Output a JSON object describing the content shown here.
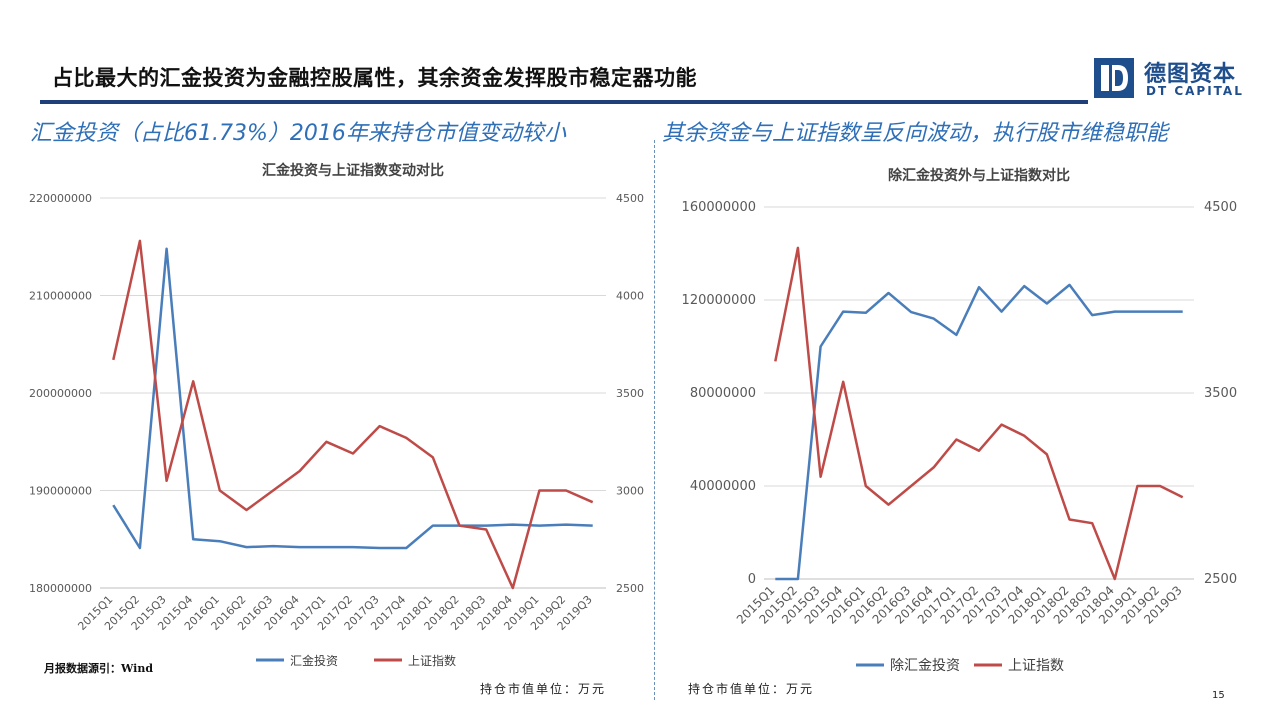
{
  "page": {
    "title": "占比最大的汇金投资为金融控股属性，其余资金发挥股市稳定器功能",
    "page_number": "15",
    "brand_color": "#1f3f7a"
  },
  "logo": {
    "cn": "德图资本",
    "en": "DT CAPITAL"
  },
  "left": {
    "subheading": "汇金投资（占比61.73%）2016年来持仓市值变动较小",
    "source_note": "月报数据源引：Wind",
    "unit_note": "持仓市值单位：万元"
  },
  "right": {
    "subheading": "其余资金与上证指数呈反向波动，执行股市维稳职能",
    "unit_note": "持仓市值单位：万元"
  },
  "chart_data": [
    {
      "type": "line",
      "title": "汇金投资与上证指数变动对比",
      "categories": [
        "2015Q1",
        "2015Q2",
        "2015Q3",
        "2015Q4",
        "2016Q1",
        "2016Q2",
        "2016Q3",
        "2016Q4",
        "2017Q1",
        "2017Q2",
        "2017Q3",
        "2017Q4",
        "2018Q1",
        "2018Q2",
        "2018Q3",
        "2018Q4",
        "2019Q1",
        "2019Q2",
        "2019Q3"
      ],
      "y_left": {
        "ylim": [
          180000000,
          220000000
        ],
        "ticks": [
          "180000000",
          "190000000",
          "200000000",
          "210000000",
          "220000000"
        ]
      },
      "y_right": {
        "ylim": [
          2500,
          4500
        ],
        "ticks": [
          "2500",
          "3000",
          "3500",
          "4000",
          "4500"
        ]
      },
      "grid": true,
      "legend_position": "bottom",
      "series": [
        {
          "name": "汇金投资",
          "axis": "left",
          "color": "#4a7ebb",
          "values": [
            188500000,
            184100000,
            214800000,
            185000000,
            184800000,
            184200000,
            184300000,
            184200000,
            184200000,
            184200000,
            184100000,
            184100000,
            186400000,
            186400000,
            186400000,
            186500000,
            186400000,
            186500000,
            186400000
          ]
        },
        {
          "name": "上证指数",
          "axis": "right",
          "color": "#be4b48",
          "values": [
            3670,
            4280,
            3050,
            3560,
            3000,
            2900,
            3000,
            3100,
            3250,
            3190,
            3330,
            3270,
            3170,
            2820,
            2800,
            2500,
            3000,
            3000,
            2940
          ]
        }
      ]
    },
    {
      "type": "line",
      "title": "除汇金投资外与上证指数对比",
      "categories": [
        "2015Q1",
        "2015Q2",
        "2015Q3",
        "2015Q4",
        "2016Q1",
        "2016Q2",
        "2016Q3",
        "2016Q4",
        "2017Q1",
        "2017Q2",
        "2017Q3",
        "2017Q4",
        "2018Q1",
        "2018Q2",
        "2018Q3",
        "2018Q4",
        "2019Q1",
        "2019Q2",
        "2019Q3"
      ],
      "y_left": {
        "ylim": [
          0,
          160000000
        ],
        "ticks": [
          "0",
          "40000000",
          "80000000",
          "120000000",
          "160000000"
        ]
      },
      "y_right": {
        "ylim": [
          2500,
          4500
        ],
        "ticks": [
          "2500",
          "3500",
          "4500"
        ]
      },
      "grid": true,
      "legend_position": "bottom",
      "series": [
        {
          "name": "除汇金投资",
          "axis": "left",
          "color": "#4a7ebb",
          "values": [
            0,
            0,
            100000000,
            115000000,
            114500000,
            123000000,
            114800000,
            112000000,
            105000000,
            125500000,
            115000000,
            126000000,
            118500000,
            126500000,
            113500000,
            115000000,
            115000000,
            115000000,
            115000000
          ]
        },
        {
          "name": "上证指数",
          "axis": "right",
          "color": "#be4b48",
          "values": [
            3670,
            4280,
            3050,
            3560,
            3000,
            2900,
            3000,
            3100,
            3250,
            3190,
            3330,
            3270,
            3170,
            2820,
            2800,
            2500,
            3000,
            3000,
            2940
          ]
        }
      ]
    }
  ]
}
